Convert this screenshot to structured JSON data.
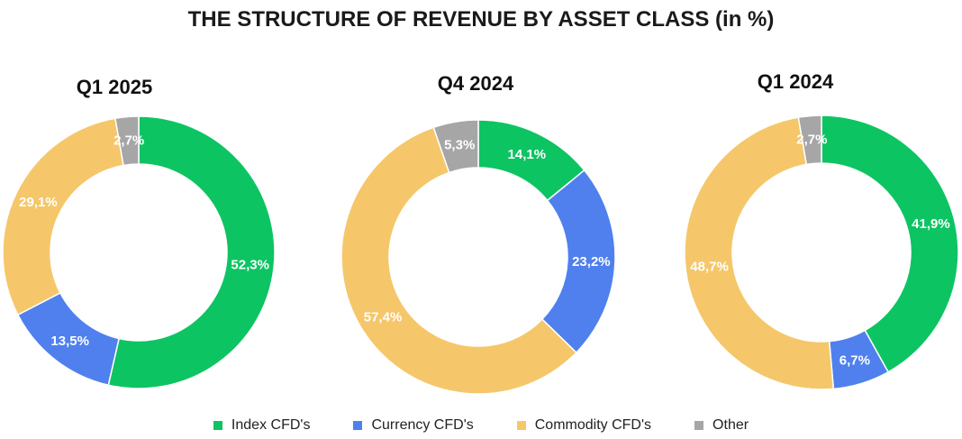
{
  "title": "THE STRUCTURE OF REVENUE BY ASSET CLASS (in %)",
  "legend": [
    {
      "label": "Index CFD's",
      "color": "#0dc462"
    },
    {
      "label": "Currency CFD's",
      "color": "#4f80ee"
    },
    {
      "label": "Commodity CFD's",
      "color": "#f5c76a"
    },
    {
      "label": "Other",
      "color": "#a6a6a6"
    }
  ],
  "chart_data": [
    {
      "type": "pie",
      "title": "Q1 2025",
      "categories": [
        "Index CFD's",
        "Currency CFD's",
        "Commodity CFD's",
        "Other"
      ],
      "values": [
        52.3,
        13.5,
        29.1,
        2.7
      ],
      "labels": [
        "52,3%",
        "13,5%",
        "29,1%",
        "2,7%"
      ],
      "donut": true
    },
    {
      "type": "pie",
      "title": "Q4 2024",
      "categories": [
        "Index CFD's",
        "Currency CFD's",
        "Commodity CFD's",
        "Other"
      ],
      "values": [
        14.1,
        23.2,
        57.4,
        5.3
      ],
      "labels": [
        "14,1%",
        "23,2%",
        "57,4%",
        "5,3%"
      ],
      "donut": true
    },
    {
      "type": "pie",
      "title": "Q1 2024",
      "categories": [
        "Index CFD's",
        "Currency CFD's",
        "Commodity CFD's",
        "Other"
      ],
      "values": [
        41.9,
        6.7,
        48.7,
        2.7
      ],
      "labels": [
        "41,9%",
        "6,7%",
        "48,7%",
        "2,7%"
      ],
      "donut": true
    }
  ]
}
